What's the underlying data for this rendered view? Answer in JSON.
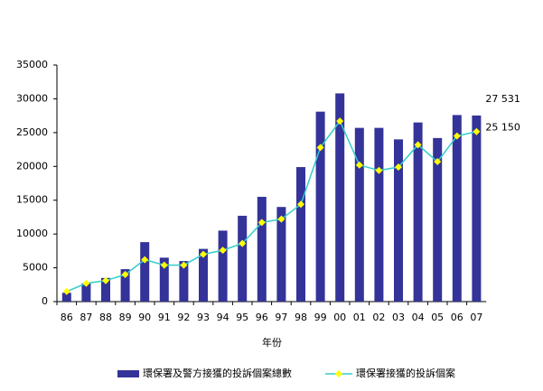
{
  "chart_data": {
    "type": "bar-line",
    "categories": [
      "86",
      "87",
      "88",
      "89",
      "90",
      "91",
      "92",
      "93",
      "94",
      "95",
      "96",
      "97",
      "98",
      "99",
      "00",
      "01",
      "02",
      "03",
      "04",
      "05",
      "06",
      "07"
    ],
    "x_label": "年份",
    "ylim": [
      0,
      35000
    ],
    "yticks": [
      0,
      5000,
      10000,
      15000,
      20000,
      25000,
      30000,
      35000
    ],
    "grid": false,
    "legend": "bottom",
    "series": [
      {
        "name": "環保署及警方接獲的投訴個案總數",
        "type": "bar",
        "color": "#333399",
        "values": [
          1300,
          2700,
          3500,
          4800,
          8800,
          6500,
          6000,
          7800,
          10500,
          12700,
          15500,
          14000,
          19900,
          28100,
          30800,
          25700,
          25700,
          24000,
          26500,
          24200,
          27600,
          27531
        ],
        "value_labels": [
          null,
          null,
          null,
          null,
          null,
          null,
          null,
          null,
          null,
          null,
          null,
          null,
          null,
          null,
          null,
          null,
          null,
          null,
          null,
          null,
          null,
          "27 531"
        ]
      },
      {
        "name": "環保署接獲的投訴個案",
        "type": "line",
        "color": "#33cccc",
        "marker_color": "#ffff00",
        "values": [
          1500,
          2700,
          3100,
          4000,
          6200,
          5400,
          5400,
          7000,
          7600,
          8600,
          11700,
          12200,
          14400,
          22800,
          26700,
          20200,
          19400,
          19900,
          23200,
          20700,
          24500,
          25150
        ],
        "value_labels": [
          null,
          null,
          null,
          null,
          null,
          null,
          null,
          null,
          null,
          null,
          null,
          null,
          null,
          null,
          null,
          null,
          null,
          null,
          null,
          null,
          null,
          "25 150"
        ]
      }
    ]
  }
}
